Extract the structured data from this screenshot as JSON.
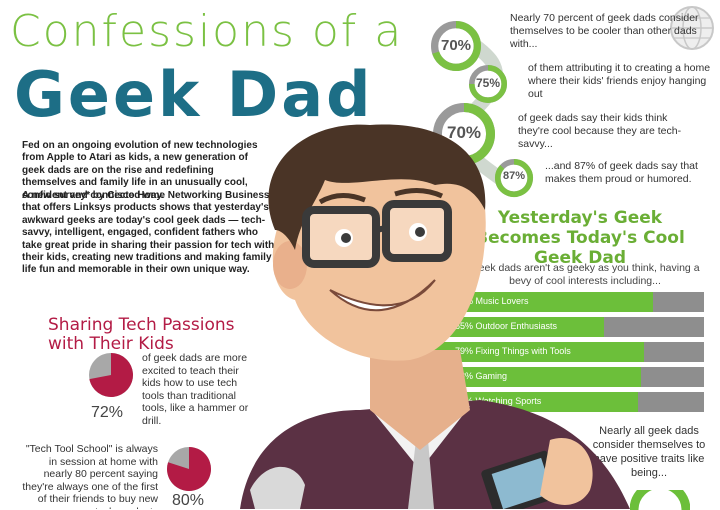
{
  "title": {
    "line1": "Confessions of a",
    "line2": "Geek Dad"
  },
  "intro": {
    "p1": "Fed on an ongoing evolution of new technologies from Apple to Atari as kids, a new generation of geek dads are on the rise and redefining themselves and family life in an unusually cool, confident and connected way.",
    "p2": "A new survey* by Cisco Home Networking Business that offers Linksys products shows that yesterday's awkward geeks are today's cool geek dads — tech-savvy, intelligent, engaged, confident fathers who take great pride in sharing their passion for tech with their kids, creating new traditions and making family life fun and memorable in their own unique way."
  },
  "stats": [
    {
      "pct": "70%",
      "value": 0.7,
      "text": "Nearly 70 percent of geek dads consider themselves to be cooler than other dads with..."
    },
    {
      "pct": "75%",
      "value": 0.75,
      "text": "of them attributing it to creating a home where their kids' friends enjoy hanging out"
    },
    {
      "pct": "70%",
      "value": 0.7,
      "text": "of geek dads say their kids think they're cool because they are tech-savvy..."
    },
    {
      "pct": "87%",
      "value": 0.87,
      "text": "...and 87% of geek dads say that makes them proud or humored."
    }
  ],
  "sharing": {
    "heading": "Sharing Tech Passions with Their Kids",
    "pie1": {
      "pct": "72%",
      "value": 0.72,
      "text": "of geek dads are more excited to teach their kids how to use tech tools than traditional tools, like a hammer or drill."
    },
    "school_text": "\"Tech Tool School\" is always in session at home with nearly 80 percent saying they're always one of the first of their friends to buy new tech products",
    "pie2": {
      "pct": "80%",
      "value": 0.8
    }
  },
  "interests": {
    "heading": "Yesterday's Geek Becomes Today's Cool Geek Dad",
    "subheading": "Geek dads aren't as geeky as you think, having a bevy of cool interests including...",
    "items": [
      {
        "label": "82% Music Lovers",
        "value": 0.82
      },
      {
        "label": "65% Outdoor Enthusiasts",
        "value": 0.65
      },
      {
        "label": "79% Fixing Things with Tools",
        "value": 0.79
      },
      {
        "label": "78% Gaming",
        "value": 0.78
      },
      {
        "label": "77% Watching Sports",
        "value": 0.77
      }
    ]
  },
  "traits": {
    "text": "Nearly all geek dads consider themselves to have positive traits like being..."
  },
  "colors": {
    "green": "#7bc143",
    "teal": "#1d6e86",
    "crimson": "#b31b45",
    "gray": "#8e8e8e"
  }
}
